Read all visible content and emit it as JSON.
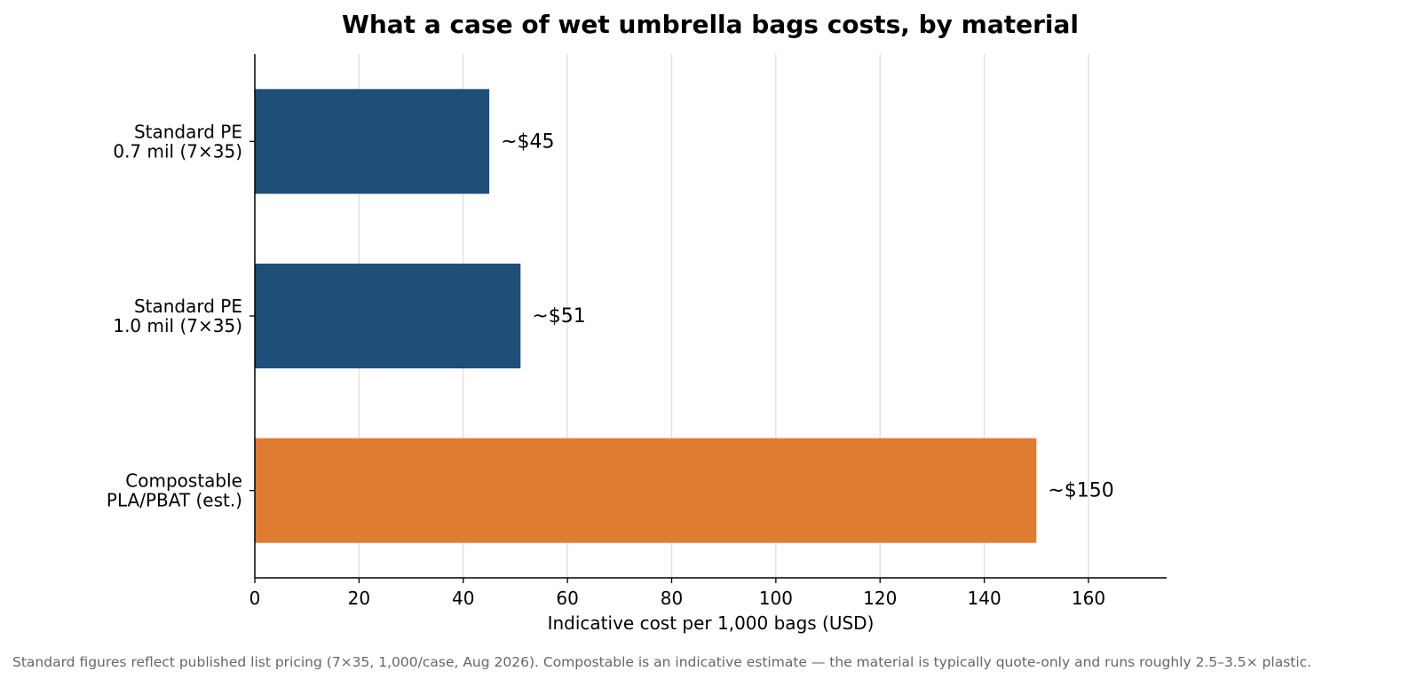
{
  "chart_data": {
    "type": "bar",
    "orientation": "horizontal",
    "title": "What a case of wet umbrella bags costs, by material",
    "xlabel": "Indicative cost per 1,000 bags (USD)",
    "ylabel": "",
    "xlim": [
      0,
      175
    ],
    "xticks": [
      0,
      20,
      40,
      60,
      80,
      100,
      120,
      140,
      160
    ],
    "grid": "vertical",
    "categories": [
      [
        "Standard PE",
        "0.7 mil (7×35)"
      ],
      [
        "Standard PE",
        "1.0 mil (7×35)"
      ],
      [
        "Compostable",
        "PLA/PBAT (est.)"
      ]
    ],
    "values": [
      45,
      51,
      150
    ],
    "data_labels": [
      "~$45",
      "~$51",
      "~$150"
    ],
    "colors": [
      "#1f4e79",
      "#1f4e79",
      "#e07b32"
    ],
    "footnote": "Standard figures reflect published list pricing (7×35, 1,000/case, Aug 2026). Compostable is an indicative estimate — the material is typically quote-only and runs roughly 2.5–3.5× plastic."
  },
  "style": {
    "grid_color": "#dddddd",
    "axis_color": "#000000"
  }
}
